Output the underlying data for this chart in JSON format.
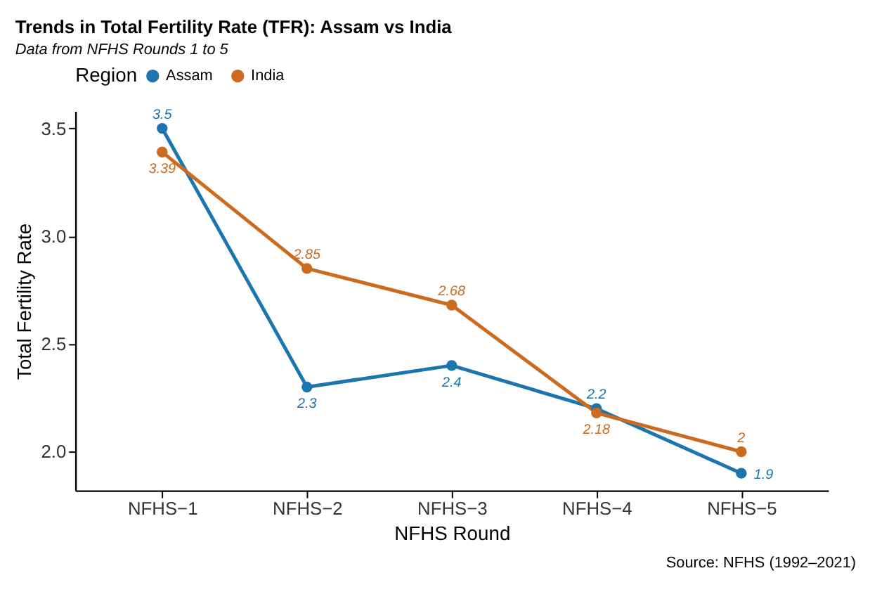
{
  "chart_data": {
    "type": "line",
    "title": "Trends in Total Fertility Rate (TFR): Assam vs India",
    "subtitle": "Data from NFHS Rounds 1 to 5",
    "xlabel": "NFHS Round",
    "ylabel": "Total Fertility Rate",
    "legend_title": "Region",
    "categories": [
      "NFHS−1",
      "NFHS−2",
      "NFHS−3",
      "NFHS−4",
      "NFHS−5"
    ],
    "series": [
      {
        "name": "Assam",
        "color": "#1b75ae",
        "values": [
          3.5,
          2.3,
          2.4,
          2.2,
          1.9
        ],
        "value_labels": [
          "3.5",
          "2.3",
          "2.4",
          "2.2",
          "1.9"
        ]
      },
      {
        "name": "India",
        "color": "#cc6a1f",
        "values": [
          3.39,
          2.85,
          2.68,
          2.18,
          2.0
        ],
        "value_labels": [
          "3.39",
          "2.85",
          "2.68",
          "2.18",
          "2"
        ]
      }
    ],
    "ylim": [
      1.82,
      3.58
    ],
    "yticks": [
      {
        "value": 2.0,
        "label": "2.0"
      },
      {
        "value": 2.5,
        "label": "2.5"
      },
      {
        "value": 3.0,
        "label": "3.0"
      },
      {
        "value": 3.5,
        "label": "3.5"
      }
    ],
    "grid": false,
    "legend": "top",
    "marker": "circle",
    "line_style": "solid",
    "annotations": [
      "Source: NFHS (1992–2021)"
    ]
  }
}
